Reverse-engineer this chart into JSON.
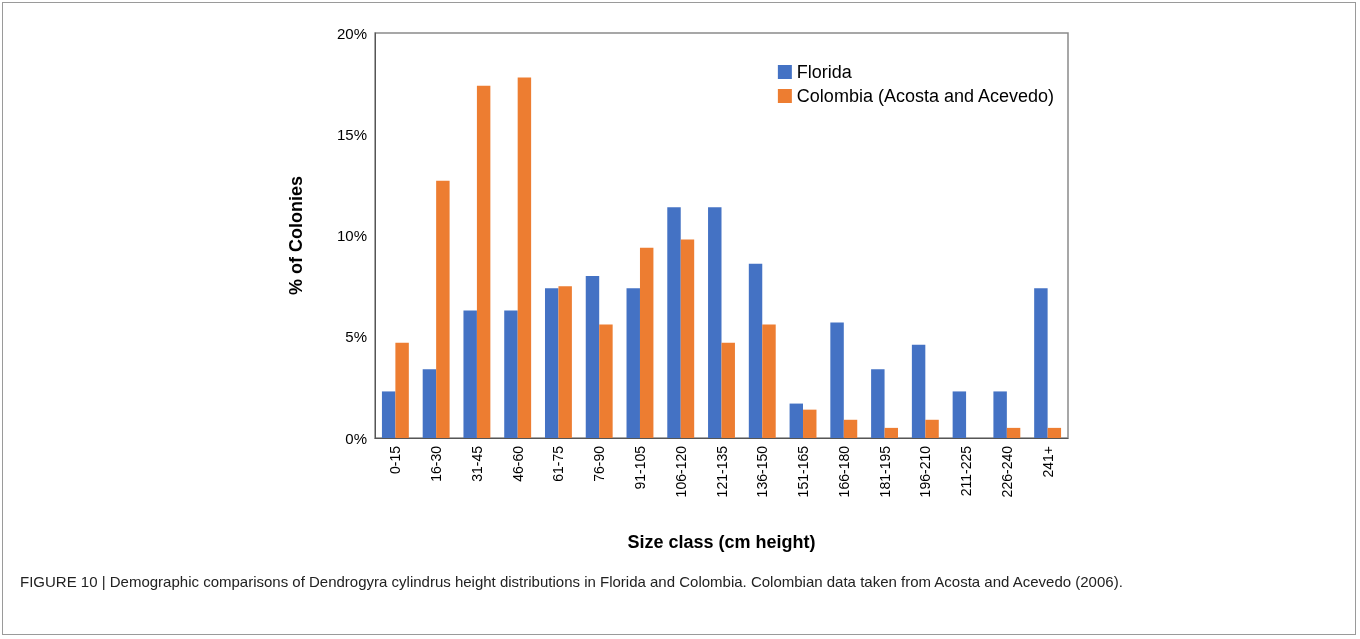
{
  "chart_data": {
    "type": "bar",
    "xlabel": "Size class (cm height)",
    "ylabel": "% of Colonies",
    "categories": [
      "0-15",
      "16-30",
      "31-45",
      "46-60",
      "61-75",
      "76-90",
      "91-105",
      "106-120",
      "121-135",
      "136-150",
      "151-165",
      "166-180",
      "181-195",
      "196-210",
      "211-225",
      "226-240",
      "241+"
    ],
    "series": [
      {
        "name": "Florida",
        "color": "#4472c4",
        "values": [
          2.3,
          3.4,
          6.3,
          6.3,
          7.4,
          8.0,
          7.4,
          11.4,
          11.4,
          8.6,
          1.7,
          5.7,
          3.4,
          4.6,
          2.3,
          2.3,
          7.4
        ]
      },
      {
        "name": "Colombia (Acosta and Acevedo)",
        "color": "#ed7d31",
        "values": [
          4.7,
          12.7,
          17.4,
          17.8,
          7.5,
          5.6,
          9.4,
          9.8,
          4.7,
          5.6,
          1.4,
          0.9,
          0.5,
          0.9,
          0,
          0.5,
          0.5
        ]
      }
    ],
    "ylim": [
      0,
      20
    ],
    "yticks": [
      {
        "value": 0,
        "label": "0%"
      },
      {
        "value": 5,
        "label": "5%"
      },
      {
        "value": 10,
        "label": "10%"
      },
      {
        "value": 15,
        "label": "15%"
      },
      {
        "value": 20,
        "label": "20%"
      }
    ],
    "grid": false,
    "legend": "top right",
    "annotations": [
      "FIGURE 10 | Demographic comparisons of Dendrogyra cylindrus height distributions in Florida and Colombia. Colombian data taken from Acosta and Acevedo (2006)."
    ]
  }
}
